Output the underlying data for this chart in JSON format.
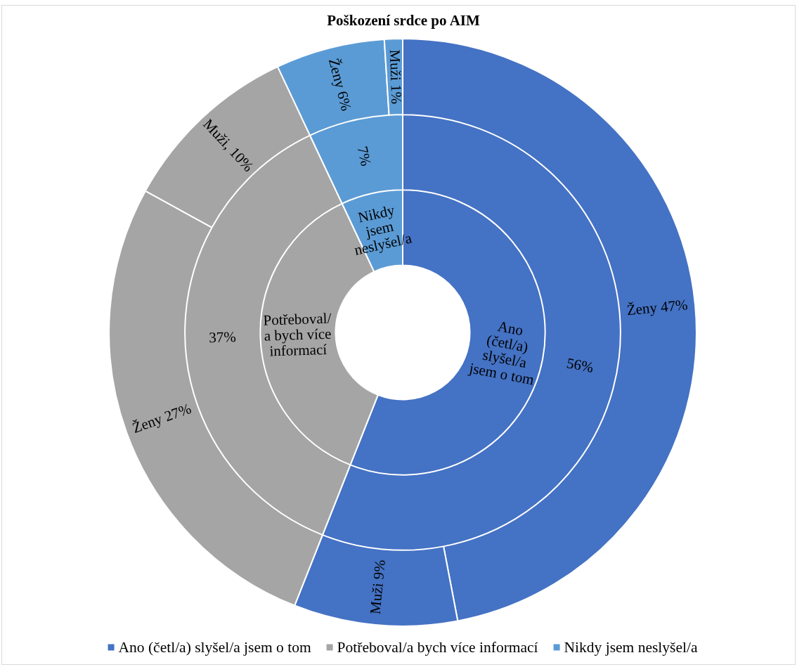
{
  "chart_data": [
    {
      "type": "donut",
      "title": "Poškození srdce po AIM",
      "categories": [
        "Ano (četl/a) slyšel/a jsem o tom",
        "Potřeboval/a bych více informací",
        "Nikdy jsem neslyšel/a"
      ],
      "values": [
        56,
        37,
        7
      ],
      "colors": [
        "#4472c4",
        "#a5a5a5",
        "#5b9bd5"
      ],
      "value_labels": [
        "Ano (četl/a) slyšel/a jsem o tom",
        "Potřeboval/a bych více informací",
        "Nikdy jsem neslyšel/a"
      ],
      "legend": "bottom"
    },
    {
      "type": "donut",
      "categories": [
        null,
        null,
        null
      ],
      "values": [
        56,
        37,
        7
      ],
      "colors": [
        "#4472c4",
        "#a5a5a5",
        "#5b9bd5"
      ],
      "value_labels": [
        "56%",
        "37%",
        "7%"
      ]
    },
    {
      "type": "donut",
      "categories": [
        null,
        null,
        null,
        null,
        null,
        null
      ],
      "values": [
        47,
        9,
        27,
        10,
        6,
        1
      ],
      "colors": [
        "#4472c4",
        "#4472c4",
        "#a5a5a5",
        "#a5a5a5",
        "#5b9bd5",
        "#5b9bd5"
      ],
      "value_labels": [
        "Ženy 47%",
        "Muži 9%",
        "Ženy 27%",
        "Muži, 10%",
        "Ženy 6%",
        "Muži 1%"
      ]
    }
  ]
}
